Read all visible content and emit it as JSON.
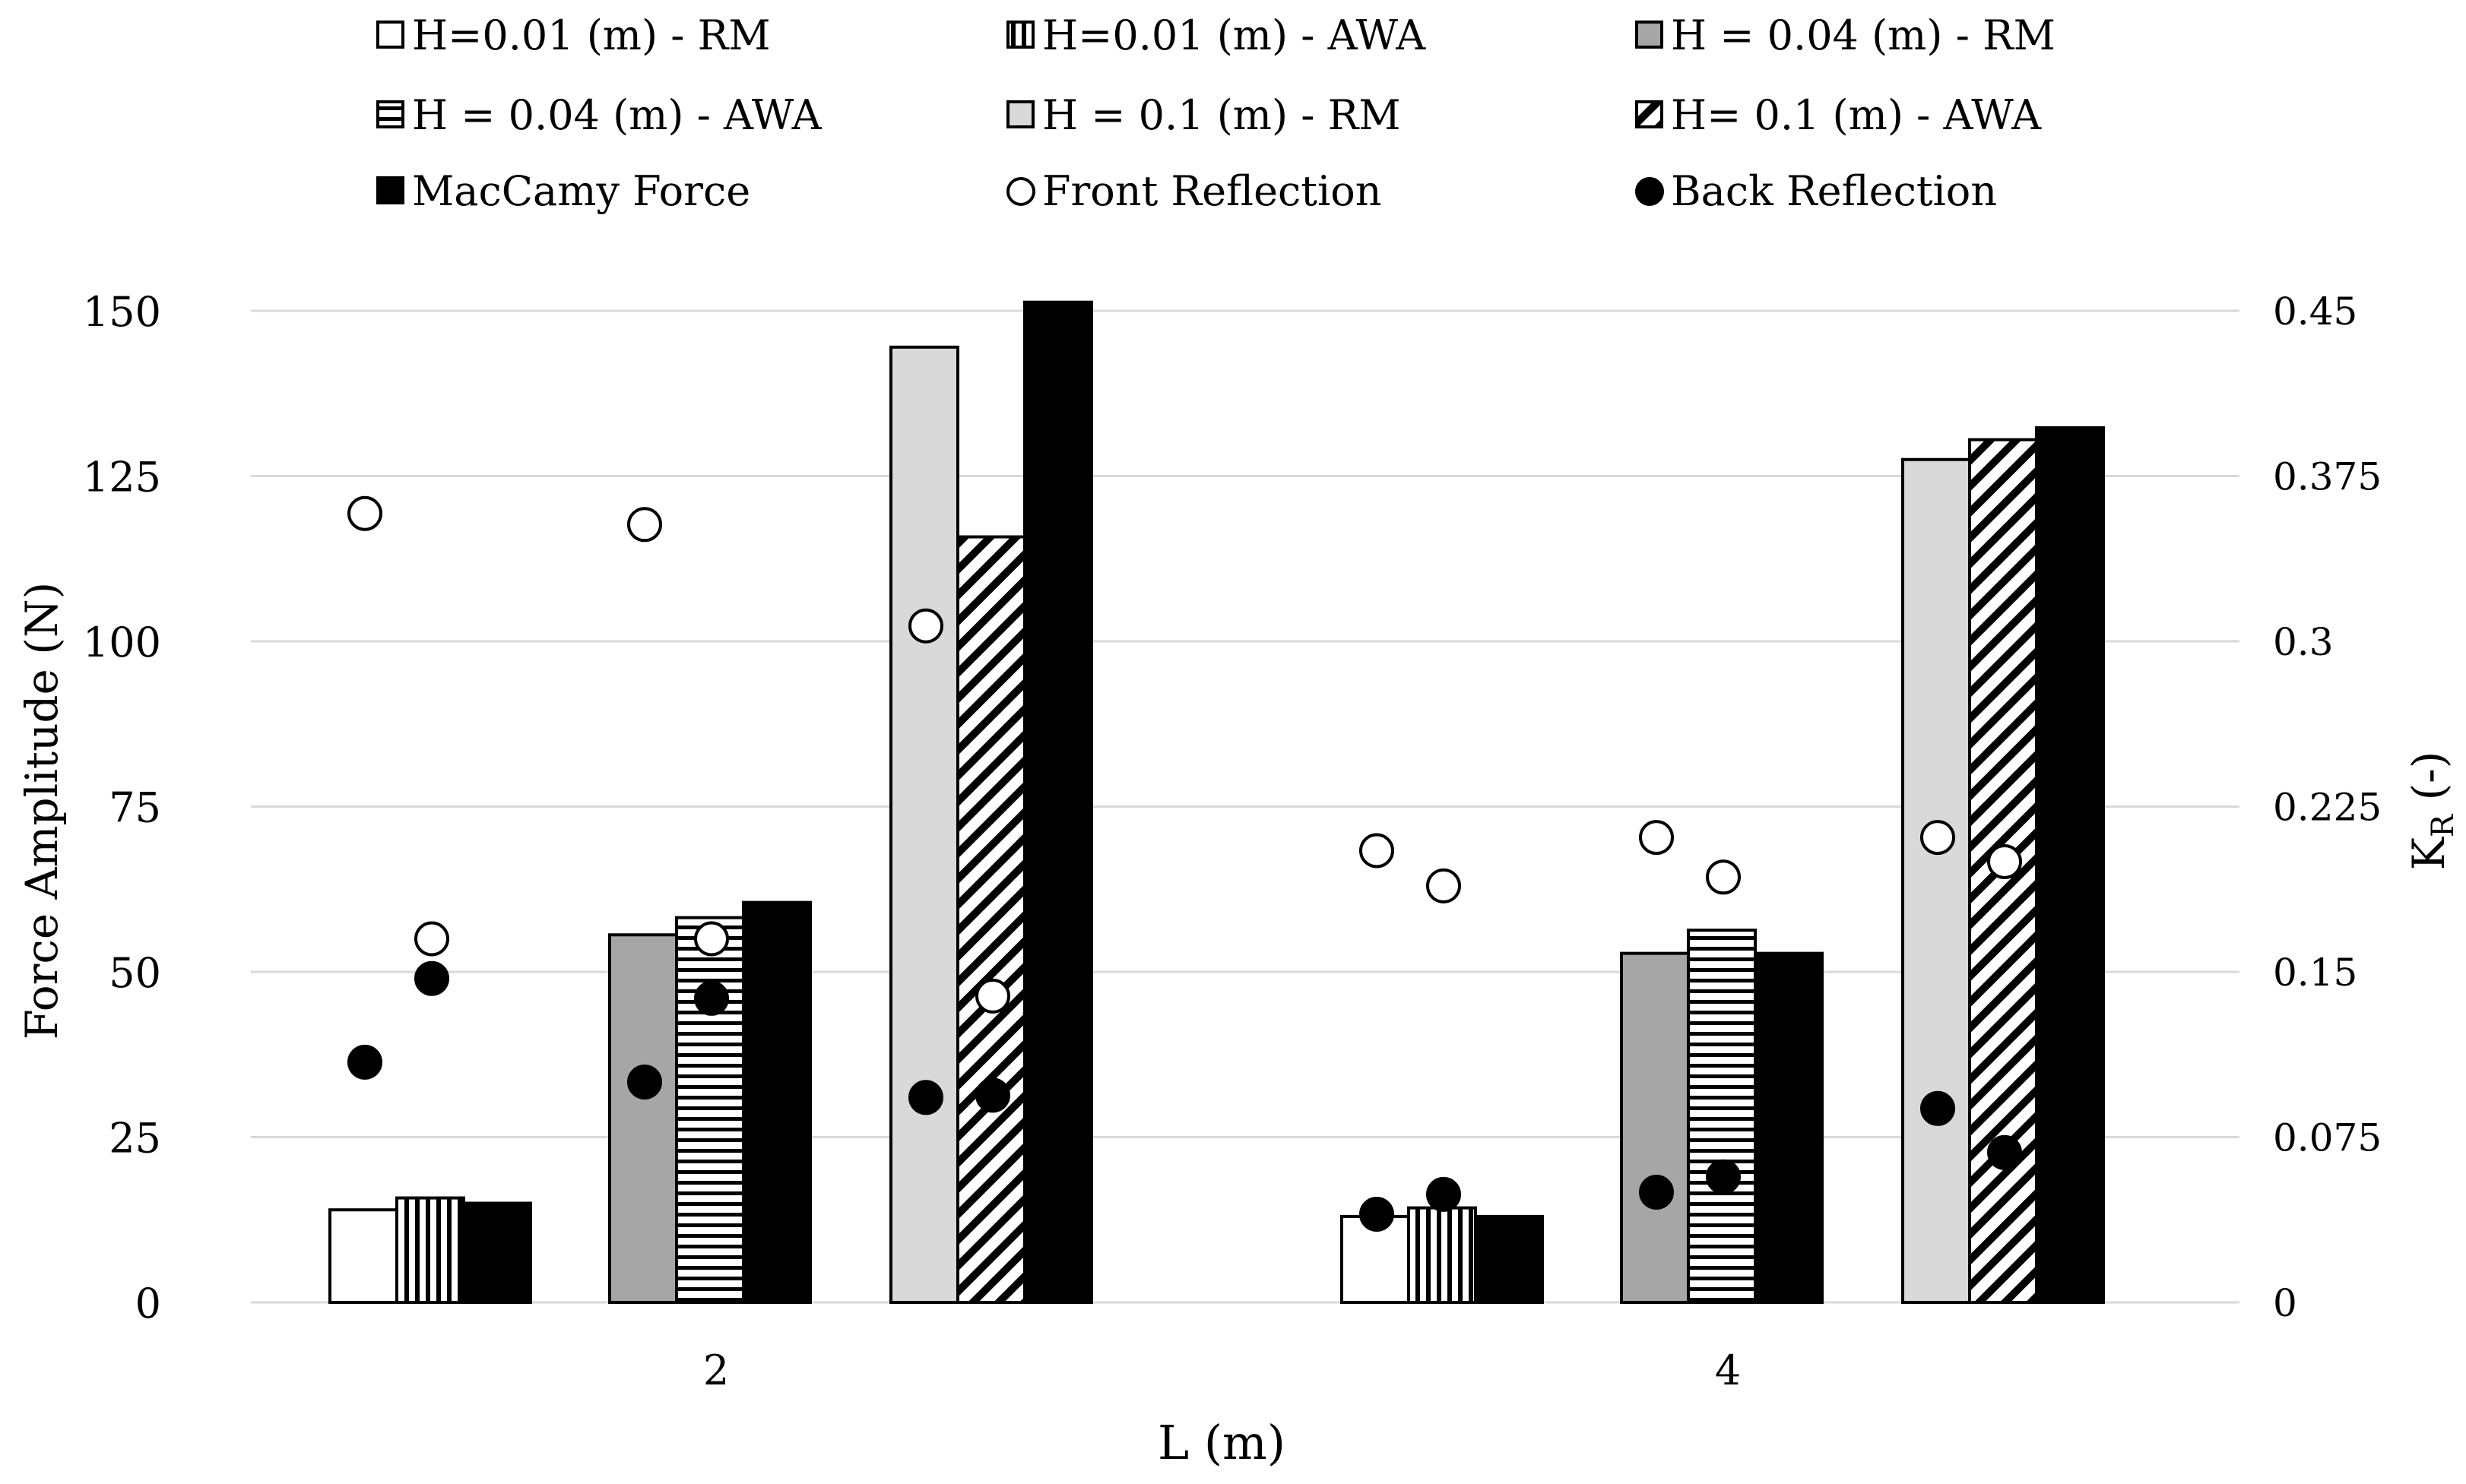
{
  "chart_data": {
    "type": "bar",
    "title": "",
    "xlabel": "L (m)",
    "ylabel": "Force Amplitude (N)",
    "y2label_main": "K",
    "y2label_sub": "R",
    "y2label_suffix": " (-)",
    "ylim": [
      0,
      150
    ],
    "y2lim": [
      0,
      0.45
    ],
    "yticks": [
      0,
      25,
      50,
      75,
      100,
      125,
      150
    ],
    "y2ticks": [
      "0",
      "0.075",
      "0.15",
      "0.225",
      "0.3",
      "0.375",
      "0.45"
    ],
    "grid": true,
    "categories": [
      "2",
      "4"
    ],
    "wave_heights": [
      "H = 0.01 m",
      "H = 0.04 m",
      "H = 0.1 m"
    ],
    "series": [
      {
        "name": "H=0.01 (m) - RM",
        "kind": "bar",
        "pattern": "white",
        "group": 0,
        "slot": 0,
        "values": [
          14,
          13
        ]
      },
      {
        "name": "H=0.01 (m) - AWA",
        "kind": "bar",
        "pattern": "vlines",
        "group": 0,
        "slot": 1,
        "values": [
          15.8,
          14.3
        ]
      },
      {
        "name": "H = 0.04 (m) - RM",
        "kind": "bar",
        "pattern": "gray",
        "group": 1,
        "slot": 0,
        "values": [
          55.6,
          52.8
        ]
      },
      {
        "name": "H = 0.04 (m) - AWA",
        "kind": "bar",
        "pattern": "hlines",
        "group": 1,
        "slot": 1,
        "values": [
          58.2,
          56.3
        ]
      },
      {
        "name": "H = 0.1 (m) - RM",
        "kind": "bar",
        "pattern": "lightgray",
        "group": 2,
        "slot": 0,
        "values": [
          144.5,
          127.5
        ]
      },
      {
        "name": "H= 0.1 (m) - AWA",
        "kind": "bar",
        "pattern": "diag",
        "group": 2,
        "slot": 1,
        "values": [
          115.8,
          130.5
        ]
      },
      {
        "name": "MacCamy Force",
        "kind": "bar",
        "pattern": "black",
        "group": -1,
        "slot": 2,
        "values": [
          [
            15,
            60.5,
            151.3
          ],
          [
            13,
            52.8,
            132.3
          ]
        ]
      },
      {
        "name": "Front Reflection",
        "kind": "point",
        "fill": "open",
        "axis": "right",
        "values": [
          [
            [
              0.358,
              0.165
            ],
            [
              0.353,
              0.165
            ],
            [
              0.307,
              0.139
            ]
          ],
          [
            [
              0.205,
              0.189
            ],
            [
              0.211,
              0.193
            ],
            [
              0.211,
              0.2
            ]
          ]
        ]
      },
      {
        "name": "Back Reflection",
        "kind": "point",
        "fill": "filled",
        "axis": "right",
        "values": [
          [
            [
              0.109,
              0.147
            ],
            [
              0.1,
              0.138
            ],
            [
              0.093,
              0.094
            ]
          ],
          [
            [
              0.04,
              0.049
            ],
            [
              0.05,
              0.057
            ],
            [
              0.088,
              0.068
            ]
          ]
        ]
      }
    ],
    "legend": {
      "position": "top",
      "colors": {
        "gray": "#a6a6a6",
        "lightgray": "#d9d9d9",
        "black": "#000000",
        "white": "#ffffff"
      }
    }
  }
}
